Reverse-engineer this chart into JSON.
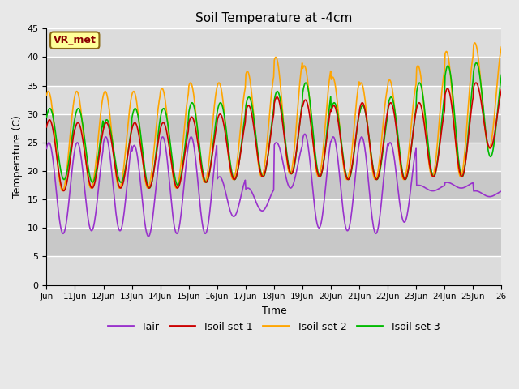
{
  "title": "Soil Temperature at -4cm",
  "xlabel": "Time",
  "ylabel": "Temperature (C)",
  "ylim": [
    0,
    45
  ],
  "yticks": [
    0,
    5,
    10,
    15,
    20,
    25,
    30,
    35,
    40,
    45
  ],
  "x_tick_labels": [
    "Jun",
    "11Jun",
    "12Jun",
    "13Jun",
    "14Jun",
    "15Jun",
    "16Jun",
    "17Jun",
    "18Jun",
    "19Jun",
    "20Jun",
    "21Jun",
    "22Jun",
    "23Jun",
    "24Jun",
    "25Jun",
    "26"
  ],
  "annotation_text": "VR_met",
  "annotation_color": "#8B0000",
  "annotation_bg": "#FFFF99",
  "annotation_edge": "#8B6914",
  "series_colors": {
    "Tair": "#9932CC",
    "Tsoil set 1": "#CC0000",
    "Tsoil set 2": "#FFA500",
    "Tsoil set 3": "#00BB00"
  },
  "linewidth": 1.2,
  "bg_color": "#E8E8E8",
  "plot_bg_color": "#DCDCDC",
  "plot_bg_dark": "#C8C8C8",
  "grid_color": "#FFFFFF",
  "figsize": [
    6.4,
    4.8
  ],
  "dpi": 100,
  "n_days": 16,
  "tair_mins": [
    9.0,
    9.5,
    9.5,
    8.5,
    9.0,
    9.0,
    12.0,
    13.0,
    17.0,
    10.0,
    9.5,
    9.0,
    11.0,
    16.5,
    17.0,
    15.5
  ],
  "tair_amps": [
    16.0,
    15.5,
    16.5,
    16.0,
    17.0,
    17.0,
    7.0,
    4.0,
    8.0,
    16.5,
    16.5,
    17.0,
    14.0,
    1.0,
    1.0,
    1.0
  ],
  "tsoil1_mins": [
    16.5,
    17.0,
    17.0,
    17.0,
    17.0,
    18.0,
    18.5,
    19.0,
    19.5,
    19.0,
    18.5,
    18.5,
    18.5,
    19.0,
    19.0,
    24.0
  ],
  "tsoil1_amps": [
    12.5,
    11.5,
    11.5,
    11.5,
    11.5,
    11.5,
    11.5,
    12.5,
    13.5,
    13.5,
    13.0,
    13.5,
    13.5,
    13.0,
    15.5,
    11.5
  ],
  "tsoil2_mins": [
    16.5,
    17.0,
    17.0,
    17.0,
    17.0,
    18.0,
    18.5,
    19.0,
    19.5,
    19.0,
    18.5,
    18.5,
    18.5,
    19.0,
    19.0,
    24.0
  ],
  "tsoil2_amps": [
    17.5,
    17.0,
    17.0,
    17.0,
    17.5,
    17.5,
    17.0,
    18.5,
    20.5,
    19.5,
    18.0,
    17.0,
    17.5,
    19.5,
    22.0,
    18.5
  ],
  "tsoil3_mins": [
    18.5,
    18.0,
    18.0,
    17.0,
    17.5,
    18.0,
    18.5,
    19.0,
    19.5,
    19.0,
    18.5,
    18.5,
    18.5,
    19.0,
    19.0,
    22.5
  ],
  "tsoil3_amps": [
    12.5,
    13.0,
    11.0,
    14.0,
    13.5,
    14.0,
    13.5,
    14.0,
    14.5,
    16.5,
    13.5,
    13.0,
    14.5,
    16.5,
    19.5,
    16.5
  ]
}
